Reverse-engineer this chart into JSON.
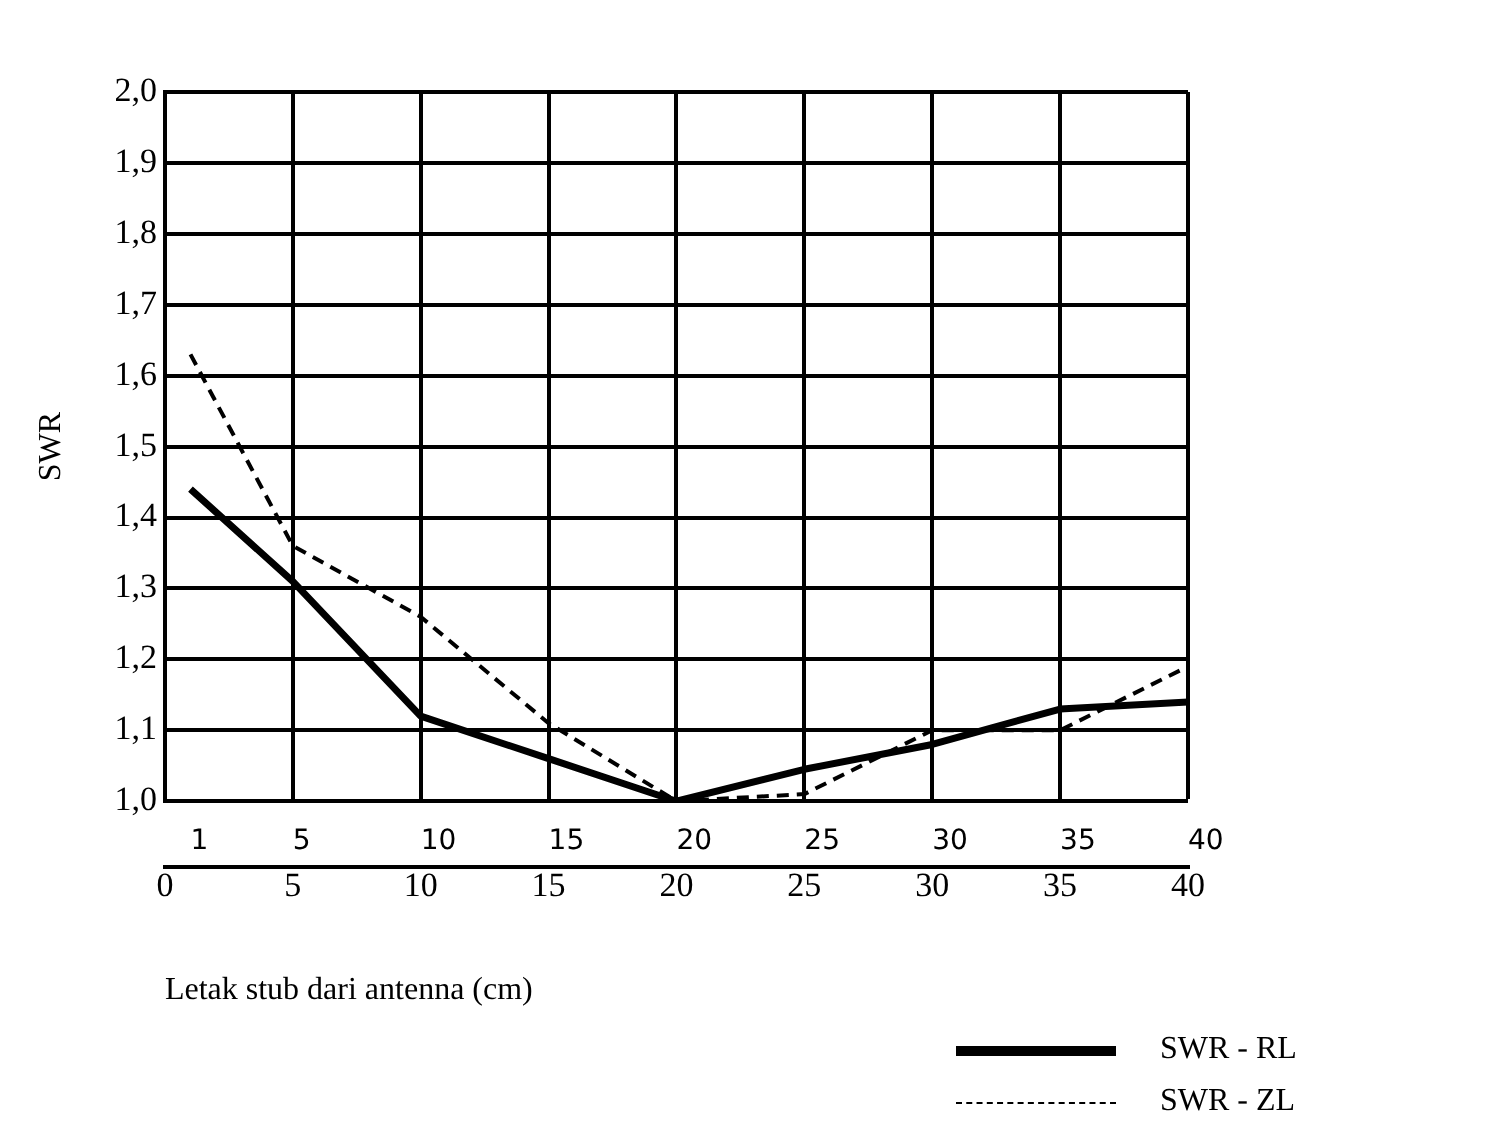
{
  "chart_data": {
    "type": "line",
    "ylabel": "SWR",
    "xlabel": "Letak stub dari antenna (cm)",
    "x": [
      1,
      5,
      10,
      15,
      20,
      25,
      30,
      35,
      40
    ],
    "series": [
      {
        "name": "SWR - RL",
        "color": "#000000",
        "line_style": "solid",
        "values": [
          1.44,
          1.31,
          1.12,
          1.06,
          1.0,
          1.045,
          1.08,
          1.13,
          1.14
        ]
      },
      {
        "name": "SWR - ZL",
        "color": "#000000",
        "line_style": "dashed",
        "values": [
          1.63,
          1.36,
          1.26,
          1.11,
          1.0,
          1.01,
          1.1,
          1.1,
          1.19
        ]
      }
    ],
    "xlim": [
      0,
      40
    ],
    "xticks": [
      0,
      5,
      10,
      15,
      20,
      25,
      30,
      35,
      40
    ],
    "x2lim": [
      0,
      40
    ],
    "x2ticks": [
      1,
      5,
      10,
      15,
      20,
      25,
      30,
      35,
      40
    ],
    "ylim": [
      1,
      2
    ],
    "yticks": [
      {
        "value": 1,
        "label": "1,0"
      },
      {
        "value": 1.1,
        "label": "1,1"
      },
      {
        "value": 1.2,
        "label": "1,2"
      },
      {
        "value": 1.3,
        "label": "1,3"
      },
      {
        "value": 1.4,
        "label": "1,4"
      },
      {
        "value": 1.5,
        "label": "1,5"
      },
      {
        "value": 1.6,
        "label": "1,6"
      },
      {
        "value": 1.7,
        "label": "1,7"
      },
      {
        "value": 1.8,
        "label": "1,8"
      },
      {
        "value": 1.9,
        "label": "1,9"
      },
      {
        "value": 2,
        "label": "2,0"
      }
    ],
    "grid": true,
    "marker": "none",
    "legend": "bottom right"
  }
}
